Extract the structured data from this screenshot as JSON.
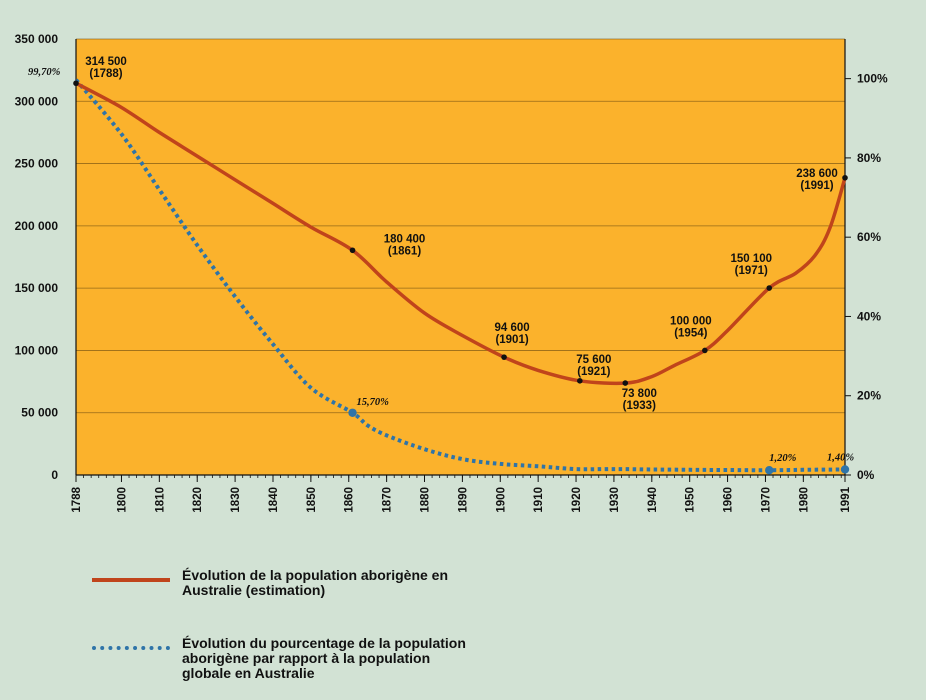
{
  "chart_data": {
    "type": "line",
    "x_ticks": [
      1788,
      1800,
      1810,
      1820,
      1830,
      1840,
      1850,
      1860,
      1870,
      1880,
      1890,
      1900,
      1910,
      1920,
      1930,
      1940,
      1950,
      1960,
      1970,
      1980,
      1991
    ],
    "xlim": [
      1788,
      1991
    ],
    "y_left": {
      "ylim": [
        0,
        350000
      ],
      "ticks": [
        0,
        50000,
        100000,
        150000,
        200000,
        250000,
        300000,
        350000
      ],
      "tick_labels": [
        "0",
        "50 000",
        "100 000",
        "150 000",
        "200 000",
        "250 000",
        "300 000",
        "350 000"
      ]
    },
    "y_right": {
      "ylim": [
        0,
        110
      ],
      "ticks": [
        0,
        20,
        40,
        60,
        80,
        100
      ],
      "tick_labels": [
        "0%",
        "20%",
        "40%",
        "60%",
        "80%",
        "100%"
      ]
    },
    "grid": "horizontal",
    "plot_background": "#fbb22c",
    "series": [
      {
        "name": "Évolution de la population aborigène en Australie (estimation)",
        "axis": "left",
        "color": "#c0441b",
        "style": "solid",
        "x": [
          1788,
          1800,
          1810,
          1820,
          1830,
          1840,
          1850,
          1861,
          1870,
          1880,
          1890,
          1901,
          1910,
          1921,
          1933,
          1940,
          1946,
          1954,
          1960,
          1971,
          1978,
          1983,
          1987,
          1991
        ],
        "values": [
          314500,
          295000,
          275000,
          256000,
          237000,
          218000,
          199000,
          180400,
          155000,
          130000,
          112000,
          94600,
          84000,
          75600,
          73800,
          79000,
          88000,
          100000,
          116000,
          150100,
          162000,
          176000,
          198000,
          238600
        ],
        "markers": [
          {
            "x": 1788,
            "y": 314500,
            "label": "314 500",
            "year": "(1788)"
          },
          {
            "x": 1861,
            "y": 180400,
            "label": "180 400",
            "year": "(1861)"
          },
          {
            "x": 1901,
            "y": 94600,
            "label": "94 600",
            "year": "(1901)"
          },
          {
            "x": 1921,
            "y": 75600,
            "label": "75 600",
            "year": "(1921)"
          },
          {
            "x": 1933,
            "y": 73800,
            "label": "73 800",
            "year": "(1933)"
          },
          {
            "x": 1954,
            "y": 100000,
            "label": "100 000",
            "year": "(1954)"
          },
          {
            "x": 1971,
            "y": 150100,
            "label": "150 100",
            "year": "(1971)"
          },
          {
            "x": 1991,
            "y": 238600,
            "label": "238 600",
            "year": "(1991)"
          }
        ]
      },
      {
        "name": "Évolution du pourcentage de la population aborigène par rapport à la population globale en Australie",
        "axis": "right",
        "color": "#2f74a8",
        "style": "dotted",
        "x": [
          1788,
          1800,
          1810,
          1820,
          1830,
          1840,
          1850,
          1861,
          1865,
          1870,
          1880,
          1890,
          1900,
          1910,
          1920,
          1930,
          1940,
          1950,
          1960,
          1971,
          1980,
          1991
        ],
        "values": [
          99.7,
          86,
          72,
          58,
          45,
          33,
          22,
          15.7,
          12.5,
          10,
          6.5,
          4,
          2.8,
          2.2,
          1.5,
          1.5,
          1.4,
          1.3,
          1.25,
          1.2,
          1.3,
          1.4
        ],
        "markers": [
          {
            "x": 1788,
            "y": 99.7,
            "label": "99,70%"
          },
          {
            "x": 1861,
            "y": 15.7,
            "label": "15,70%"
          },
          {
            "x": 1971,
            "y": 1.2,
            "label": "1,20%"
          },
          {
            "x": 1991,
            "y": 1.4,
            "label": "1,40%"
          }
        ]
      }
    ]
  },
  "legend": {
    "population": {
      "line1": "Évolution de la population aborigène en",
      "line2": "Australie (estimation)"
    },
    "percentage": {
      "line1": "Évolution du pourcentage de la population",
      "line2": "aborigène par rapport à la population",
      "line3": "globale en Australie"
    }
  }
}
